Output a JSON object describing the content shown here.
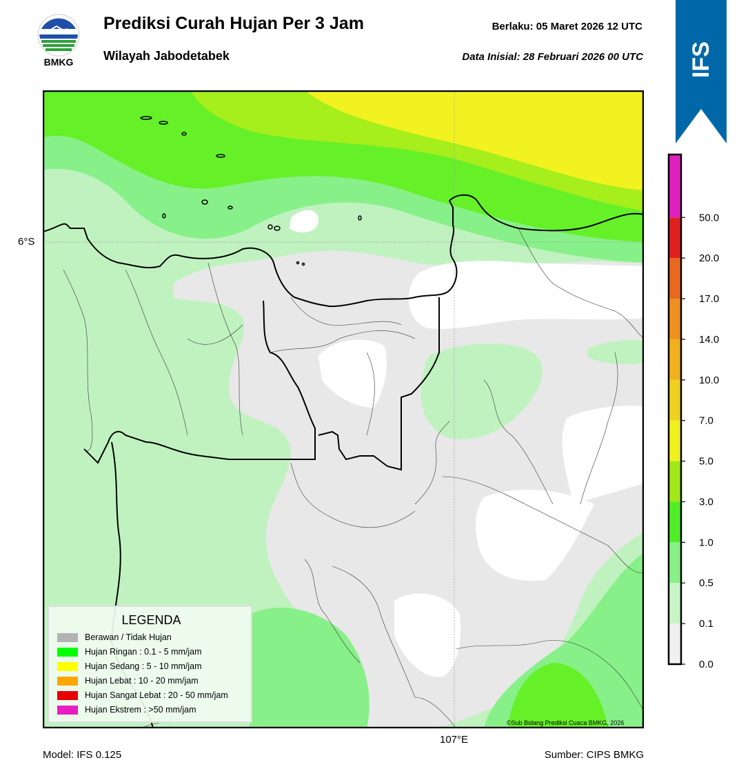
{
  "header": {
    "logo_text": "BMKG",
    "title": "Prediksi Curah Hujan Per 3 Jam",
    "subtitle": "Wilayah Jabodetabek",
    "valid_label": "Berlaku:  05 Maret 2026 12 UTC",
    "init_label": "Data Inisial:  28 Februari 2026 00 UTC"
  },
  "ribbon": {
    "text": "IFS",
    "color": "#0068a8"
  },
  "axes": {
    "lat_label": "6°S",
    "lon_label": "107°E"
  },
  "legend": {
    "title": "LEGENDA",
    "items": [
      {
        "label": "Berawan / Tidak Hujan",
        "color": "#b3b3b3"
      },
      {
        "label": "Hujan Ringan : 0.1 - 5 mm/jam",
        "color": "#00ff00"
      },
      {
        "label": "Hujan Sedang : 5 - 10 mm/jam",
        "color": "#ffff00"
      },
      {
        "label": "Hujan Lebat : 10 - 20 mm/jam",
        "color": "#ffa500"
      },
      {
        "label": "Hujan Sangat Lebat : 20 - 50 mm/jam",
        "color": "#e80000"
      },
      {
        "label": "Hujan Ekstrem : >50 mm/jam",
        "color": "#e81ec0"
      }
    ]
  },
  "colorbar": {
    "ticks": [
      "0.0",
      "0.1",
      "0.5",
      "1.0",
      "3.0",
      "5.0",
      "7.0",
      "10.0",
      "14.0",
      "17.0",
      "20.0",
      "50.0"
    ],
    "colors": [
      "#f0f0f0",
      "#c8f5c8",
      "#88f088",
      "#50ee28",
      "#a0e818",
      "#f0f020",
      "#f0d020",
      "#f0b020",
      "#ee9020",
      "#e86820",
      "#e02020",
      "#e020c0"
    ]
  },
  "footer": {
    "model": "Model: IFS 0.125",
    "source": "Sumber: CIPS BMKG",
    "copyright": "©Sub Bidang Prediksi Cuaca BMKG, 2026"
  }
}
